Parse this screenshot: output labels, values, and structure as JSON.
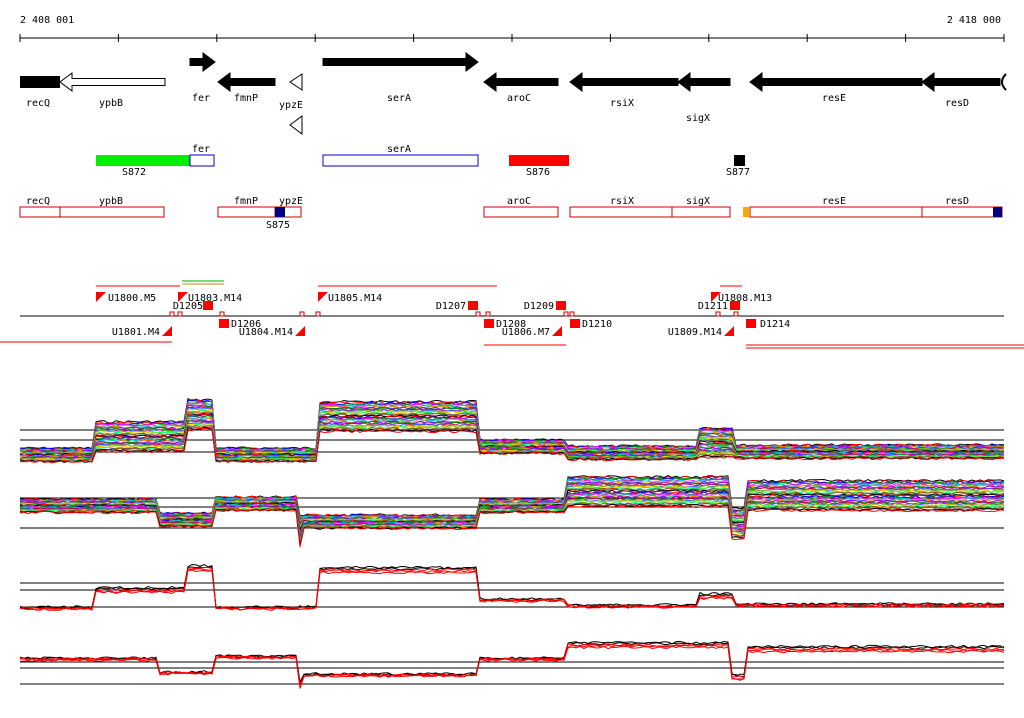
{
  "coords": {
    "start": "2 408 001",
    "end": "2 418 000"
  },
  "colors": {
    "forward_gene": "#000000",
    "reverse_gene": "#000000",
    "open_gene": "#ffffff",
    "green_segment": "#00ee00",
    "red_segment": "#ff0000",
    "outline_blue": "#0000cc",
    "outline_red": "#cc0000",
    "marker_red": "#ff0000",
    "dark_blue": "#000080",
    "orange": "#ffaa00"
  },
  "genes": [
    {
      "name": "recQ"
    },
    {
      "name": "ypbB"
    },
    {
      "name": "fer"
    },
    {
      "name": "fmnP"
    },
    {
      "name": "ypzE"
    },
    {
      "name": "serA"
    },
    {
      "name": "aroC"
    },
    {
      "name": "rsiX"
    },
    {
      "name": "sigX"
    },
    {
      "name": "resE"
    },
    {
      "name": "resD"
    }
  ],
  "segments": {
    "labels": [
      "fer",
      "serA",
      "S872",
      "S876",
      "S877"
    ]
  },
  "outline_track": {
    "labels": [
      "recQ",
      "ypbB",
      "fmnP",
      "ypzE",
      "aroC",
      "rsiX",
      "sigX",
      "resE",
      "resD",
      "S875"
    ]
  },
  "upshifts": {
    "labels": [
      "U1800.M5",
      "U1801.M4",
      "U1803.M14",
      "U1804.M14",
      "U1805.M14",
      "U1806.M7",
      "U1808.M13",
      "U1809.M14"
    ]
  },
  "downshifts": {
    "labels": [
      "D1205",
      "D1206",
      "D1207",
      "D1208",
      "D1209",
      "D1210",
      "D1211",
      "D1214"
    ]
  }
}
